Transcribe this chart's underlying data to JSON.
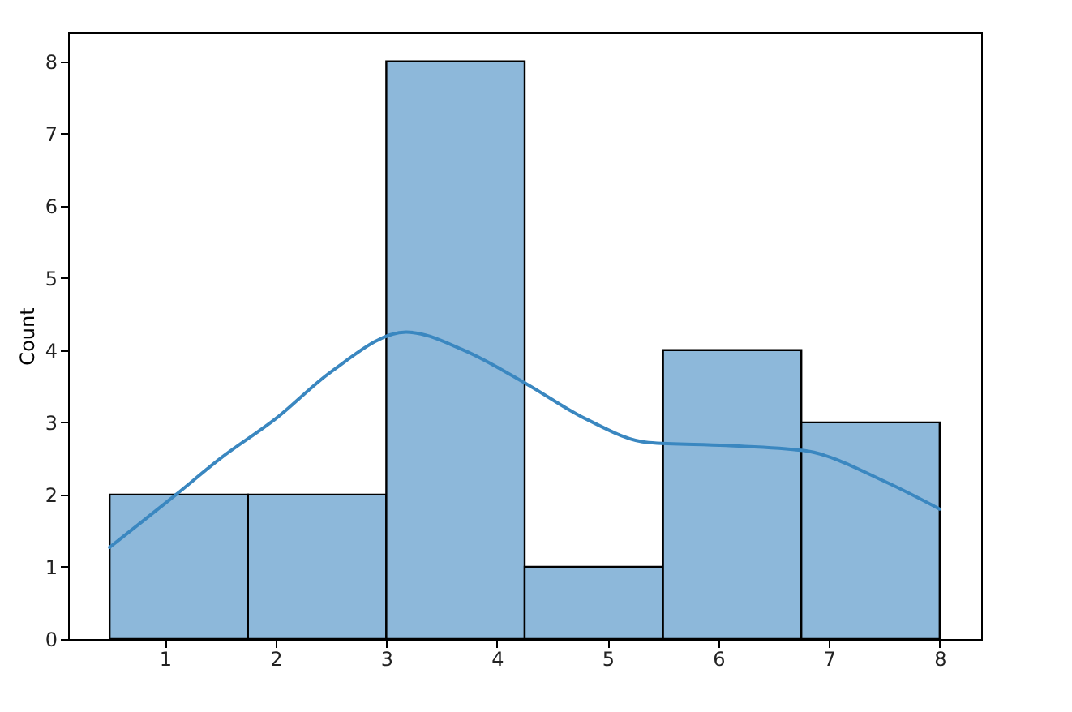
{
  "chart_data": {
    "type": "histogram",
    "ylabel": "Count",
    "bins": [
      0.5,
      1.75,
      3,
      4.25,
      5.5,
      6.75,
      8
    ],
    "values": [
      2,
      2,
      8,
      1,
      4,
      3
    ],
    "color": "#8db8da",
    "series": [
      {
        "type": "line",
        "color": "#3a87c0",
        "x": [
          0.5,
          1.1,
          1.5,
          2,
          2.5,
          3.18,
          3.7,
          4.27,
          4.8,
          5.37,
          6.07,
          6.77,
          7.52,
          8
        ],
        "values": [
          1.27,
          2.0,
          2.5,
          3.05,
          3.7,
          4.25,
          4.0,
          3.53,
          3.05,
          2.72,
          2.68,
          2.61,
          2.17,
          1.8
        ]
      }
    ],
    "xlim": [
      0.125,
      8.375
    ],
    "xticks": [
      1,
      2,
      3,
      4,
      5,
      6,
      7,
      8
    ],
    "ylim": [
      0,
      8.4
    ],
    "yticks": [
      0,
      1,
      2,
      3,
      4,
      5,
      6,
      7,
      8
    ],
    "grid": false
  }
}
